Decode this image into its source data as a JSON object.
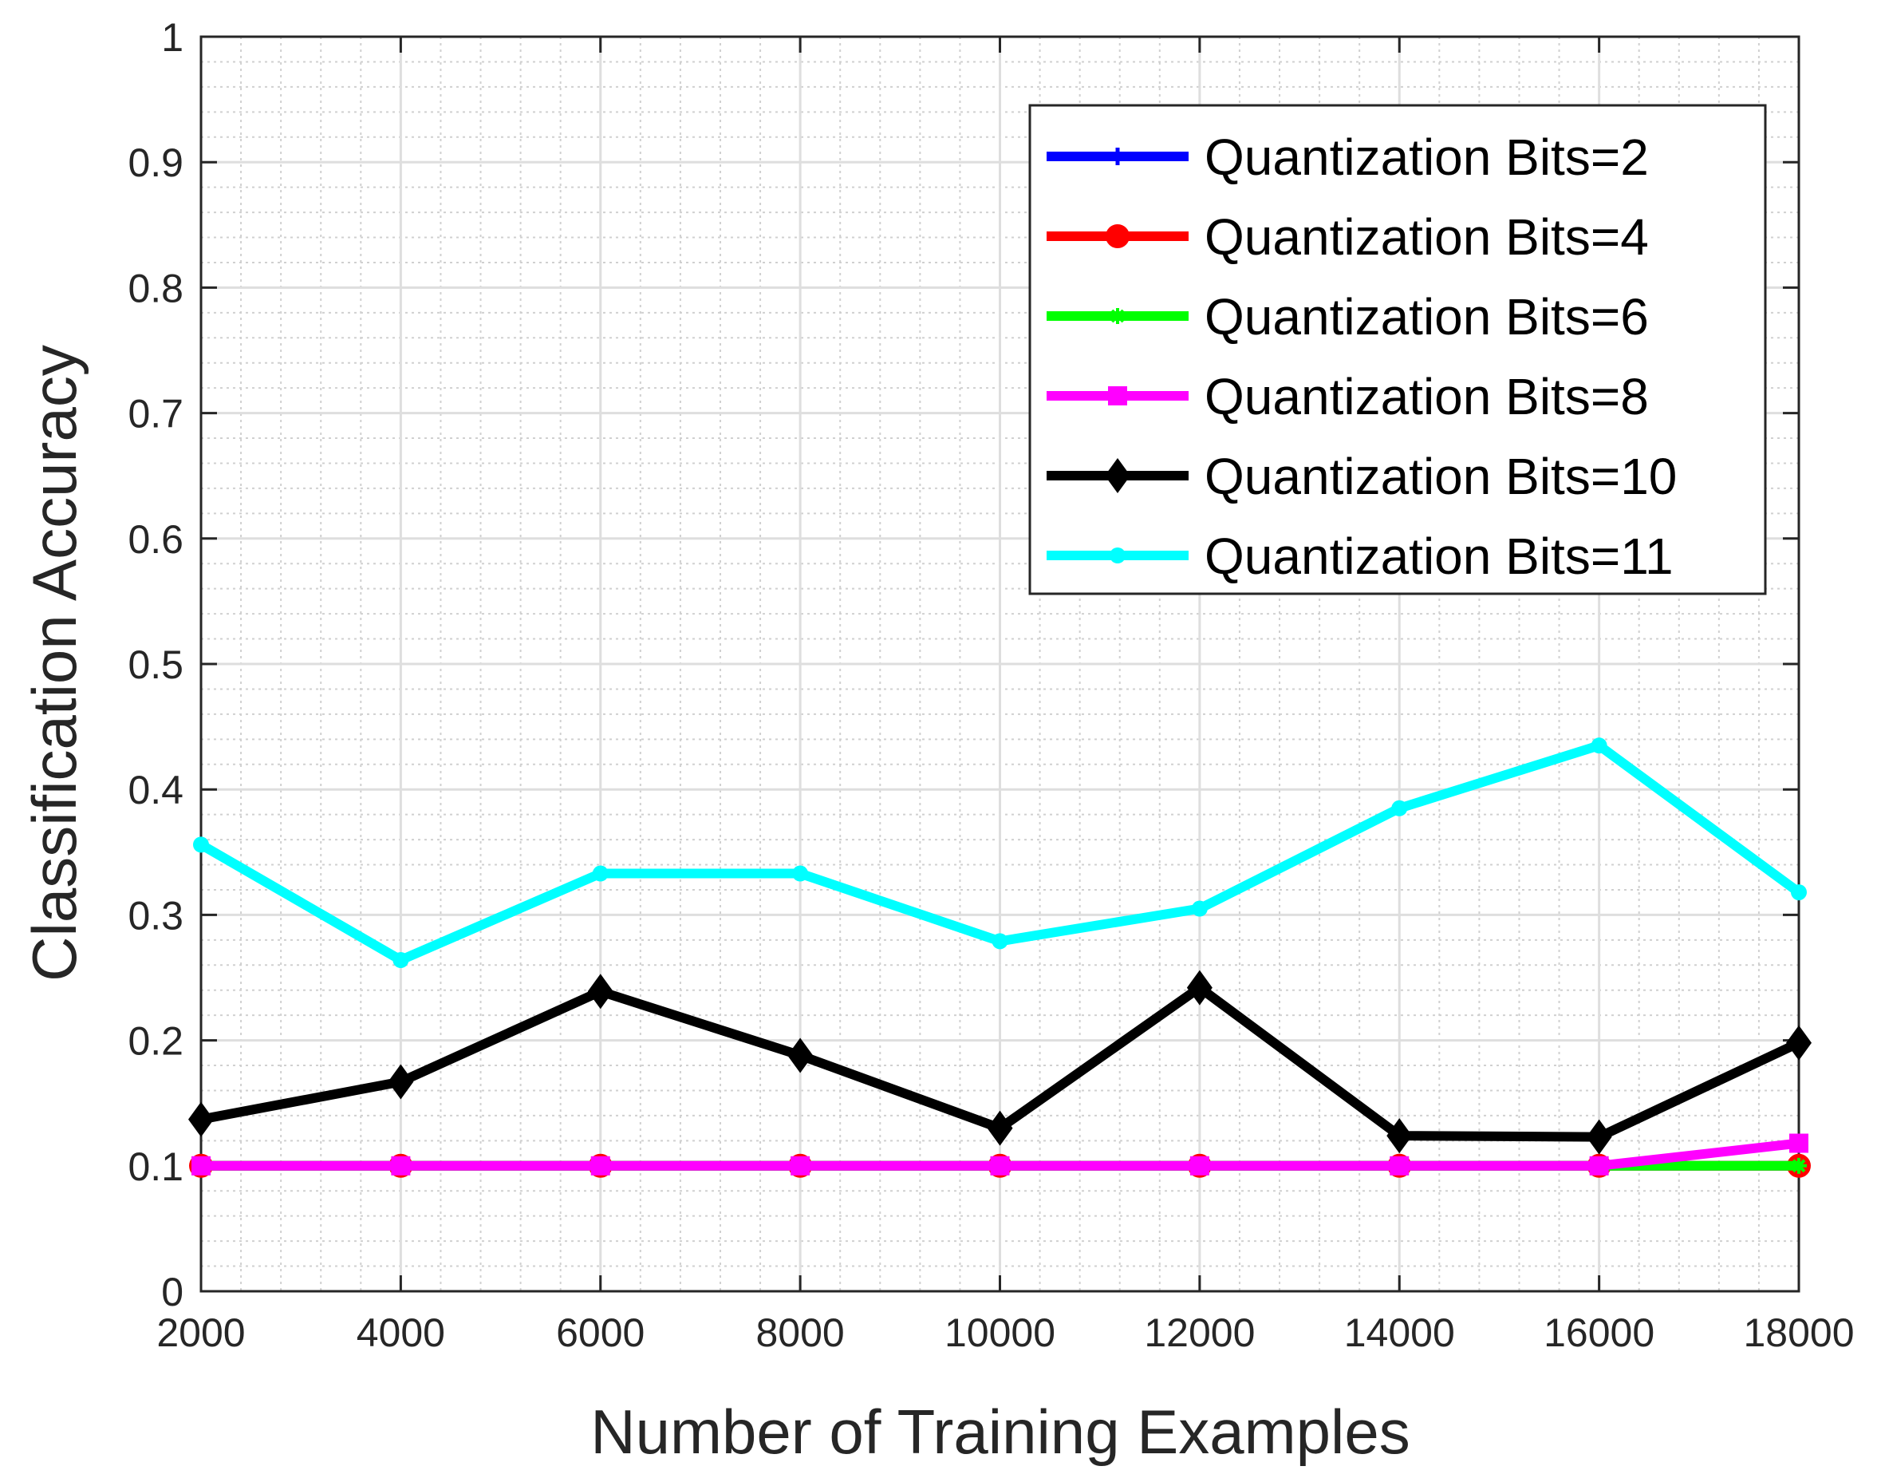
{
  "chart_data": {
    "type": "line",
    "xlabel": "Number of Training Examples",
    "ylabel": "Classification Accuracy",
    "xlim": [
      2000,
      18000
    ],
    "ylim": [
      0,
      1
    ],
    "x": [
      2000,
      4000,
      6000,
      8000,
      10000,
      12000,
      14000,
      16000,
      18000
    ],
    "x_tick_labels": [
      "2000",
      "4000",
      "6000",
      "8000",
      "10000",
      "12000",
      "14000",
      "16000",
      "18000"
    ],
    "y_ticks": [
      0,
      0.1,
      0.2,
      0.3,
      0.4,
      0.5,
      0.6,
      0.7,
      0.8,
      0.9,
      1
    ],
    "y_tick_labels": [
      "0",
      "0.1",
      "0.2",
      "0.3",
      "0.4",
      "0.5",
      "0.6",
      "0.7",
      "0.8",
      "0.9",
      "1"
    ],
    "grid": true,
    "minor_grid": true,
    "legend_position": "top-right",
    "series": [
      {
        "name": "Quantization Bits=2",
        "color": "#0000ff",
        "marker": "plus",
        "values": [
          0.1,
          0.1,
          0.1,
          0.1,
          0.1,
          0.1,
          0.1,
          0.1,
          0.1
        ]
      },
      {
        "name": "Quantization Bits=4",
        "color": "#ff0000",
        "marker": "circle",
        "values": [
          0.1,
          0.1,
          0.1,
          0.1,
          0.1,
          0.1,
          0.1,
          0.1,
          0.1
        ]
      },
      {
        "name": "Quantization Bits=6",
        "color": "#00ff00",
        "marker": "asterisk",
        "values": [
          0.1,
          0.1,
          0.1,
          0.1,
          0.1,
          0.1,
          0.1,
          0.1,
          0.1
        ]
      },
      {
        "name": "Quantization Bits=8",
        "color": "#ff00ff",
        "marker": "square",
        "values": [
          0.1,
          0.1,
          0.1,
          0.1,
          0.1,
          0.1,
          0.1,
          0.1,
          0.118
        ]
      },
      {
        "name": "Quantization Bits=10",
        "color": "#000000",
        "marker": "diamond",
        "values": [
          0.137,
          0.167,
          0.239,
          0.188,
          0.13,
          0.242,
          0.124,
          0.123,
          0.198
        ]
      },
      {
        "name": "Quantization Bits=11",
        "color": "#00ffff",
        "marker": "dot",
        "values": [
          0.356,
          0.264,
          0.333,
          0.333,
          0.279,
          0.305,
          0.385,
          0.435,
          0.318
        ]
      }
    ]
  }
}
